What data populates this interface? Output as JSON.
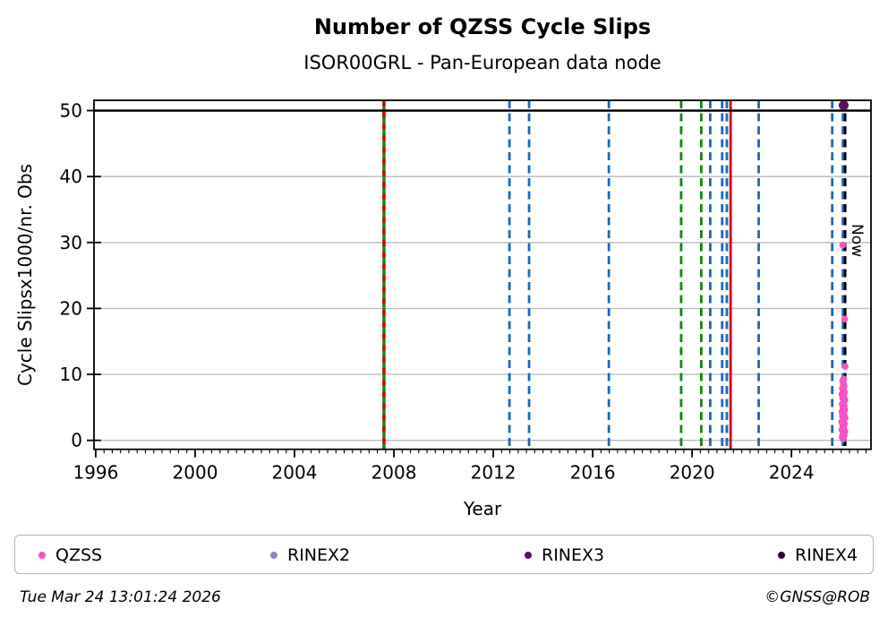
{
  "header": {
    "title": "Number of QZSS Cycle Slips",
    "subtitle": "ISOR00GRL - Pan-European data node"
  },
  "chart_data": {
    "type": "scatter",
    "title": "Number of QZSS Cycle Slips",
    "subtitle": "ISOR00GRL - Pan-European data node",
    "xlabel": "Year",
    "ylabel": "Cycle Slipsx1000/nr. Obs",
    "xlim": [
      1995.93,
      2027.2
    ],
    "ylim": [
      -1.36,
      51.56
    ],
    "x_major_ticks": [
      1996,
      2000,
      2004,
      2008,
      2012,
      2016,
      2020,
      2024
    ],
    "x_minor_step": 0.3333,
    "y_major_ticks": [
      0,
      10,
      20,
      30,
      40,
      50
    ],
    "grid_values": [
      0,
      10,
      20,
      30,
      40
    ],
    "grid_color": "#bdbdbd",
    "threshold_line": {
      "value": 50,
      "color": "#000000"
    },
    "now_label": "Now",
    "event_line_colors": {
      "blue": "#1868c4",
      "green": "#108810",
      "red": "#d40000",
      "black": "#000000"
    },
    "event_lines": [
      {
        "year": 2007.6,
        "color": "green",
        "style": "solid",
        "overlay": "red-dashed"
      },
      {
        "year": 2012.65,
        "color": "blue",
        "style": "dashed"
      },
      {
        "year": 2013.44,
        "color": "blue",
        "style": "dashed"
      },
      {
        "year": 2016.65,
        "color": "blue",
        "style": "dashed"
      },
      {
        "year": 2019.56,
        "color": "green",
        "style": "dashed"
      },
      {
        "year": 2020.37,
        "color": "green",
        "style": "dashed"
      },
      {
        "year": 2020.73,
        "color": "blue",
        "style": "dashed"
      },
      {
        "year": 2021.21,
        "color": "blue",
        "style": "dashed"
      },
      {
        "year": 2021.4,
        "color": "blue",
        "style": "dashed"
      },
      {
        "year": 2021.55,
        "color": "red",
        "style": "solid"
      },
      {
        "year": 2022.68,
        "color": "blue",
        "style": "dashed"
      },
      {
        "year": 2025.64,
        "color": "blue",
        "style": "dashed"
      },
      {
        "year": 2026.07,
        "color": "blue",
        "style": "dashed"
      },
      {
        "year": 2026.16,
        "color": "black",
        "style": "dashed",
        "label": "Now"
      }
    ],
    "series": [
      {
        "name": "QZSS",
        "color": "#fb51c3",
        "marker_radius": 3.8,
        "points": [
          [
            2026.08,
            0.2
          ],
          [
            2026.04,
            0.5
          ],
          [
            2026.12,
            0.7
          ],
          [
            2026.07,
            1.0
          ],
          [
            2026.15,
            1.3
          ],
          [
            2026.03,
            1.6
          ],
          [
            2026.1,
            1.9
          ],
          [
            2026.06,
            2.2
          ],
          [
            2026.13,
            2.5
          ],
          [
            2026.02,
            2.8
          ],
          [
            2026.09,
            3.1
          ],
          [
            2026.16,
            3.4
          ],
          [
            2026.05,
            3.7
          ],
          [
            2026.11,
            4.0
          ],
          [
            2026.03,
            4.3
          ],
          [
            2026.14,
            4.6
          ],
          [
            2026.07,
            4.9
          ],
          [
            2026.12,
            5.2
          ],
          [
            2026.04,
            5.5
          ],
          [
            2026.1,
            5.8
          ],
          [
            2026.15,
            6.1
          ],
          [
            2026.06,
            6.4
          ],
          [
            2026.11,
            6.7
          ],
          [
            2026.03,
            7.0
          ],
          [
            2026.13,
            7.3
          ],
          [
            2026.08,
            7.6
          ],
          [
            2026.05,
            7.9
          ],
          [
            2026.12,
            8.2
          ],
          [
            2026.09,
            8.6
          ],
          [
            2026.06,
            9.0
          ],
          [
            2026.1,
            9.3
          ],
          [
            2026.16,
            11.2
          ],
          [
            2026.14,
            18.4
          ],
          [
            2026.06,
            29.6
          ]
        ]
      },
      {
        "name": "RINEX2",
        "color": "#8888c4",
        "marker_radius": 3.8,
        "points": []
      },
      {
        "name": "RINEX3",
        "color": "#5c0e63",
        "marker_radius": 5.5,
        "points": [
          [
            2026.1,
            50.8
          ]
        ]
      },
      {
        "name": "RINEX4",
        "color": "#270a2e",
        "marker_radius": 3.8,
        "points": []
      }
    ]
  },
  "legend": {
    "items": [
      {
        "label": "QZSS",
        "color": "#fb51c3"
      },
      {
        "label": "RINEX2",
        "color": "#8888c4"
      },
      {
        "label": "RINEX3",
        "color": "#5c0e63"
      },
      {
        "label": "RINEX4",
        "color": "#270a2e"
      }
    ]
  },
  "footer": {
    "timestamp": "Tue Mar 24 13:01:24 2026",
    "credit": "©GNSS@ROB"
  }
}
